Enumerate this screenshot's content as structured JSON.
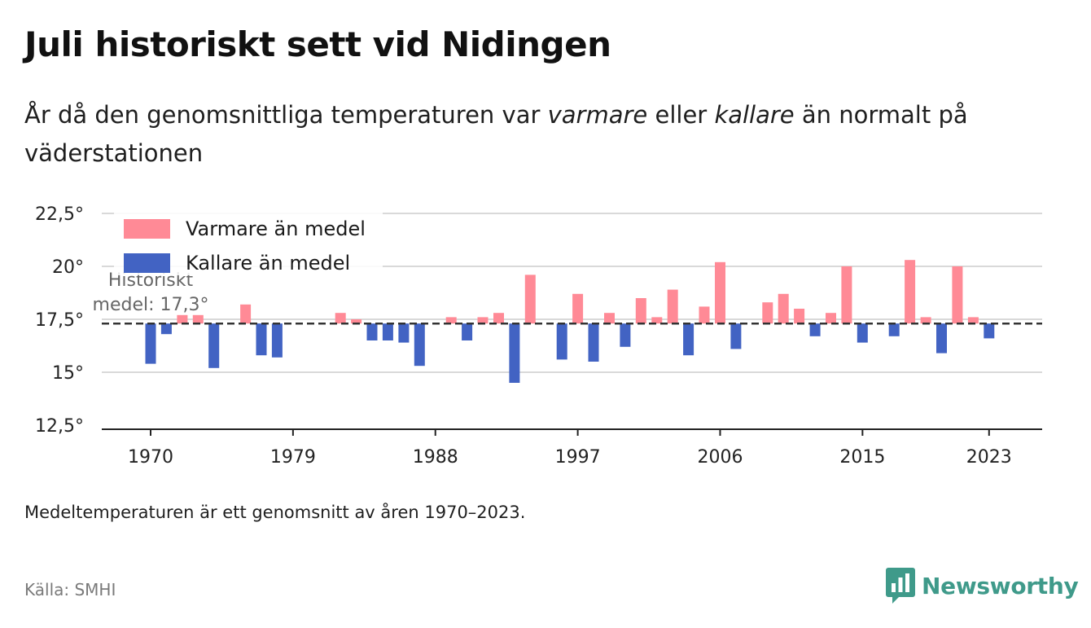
{
  "header": {
    "title": "Juli historiskt sett vid Nidingen",
    "subtitle_part1": "År då den genomsnittliga temperaturen var ",
    "subtitle_emph1": "varmare",
    "subtitle_part2": " eller ",
    "subtitle_emph2": "kallare",
    "subtitle_part3": " än normalt på väderstationen"
  },
  "footer": {
    "note": "Medeltemperaturen är ett genomsnitt av åren 1970–2023.",
    "source": "Källa: SMHI",
    "brand": "Newsworthy",
    "brand_icon": "newsworthy-logo-icon"
  },
  "colors": {
    "warmer": "#ff8a96",
    "colder": "#4263c3",
    "mean_line": "#333333",
    "grid": "#d9d9d9",
    "brand": "#3f9a8a"
  },
  "chart_data": {
    "type": "bar",
    "title": "",
    "xlabel": "",
    "ylabel": "",
    "ylim": [
      12.5,
      22.5
    ],
    "yticks": [
      12.5,
      15,
      17.5,
      20,
      22.5
    ],
    "ytick_labels": [
      "12,5°",
      "15°",
      "17,5°",
      "20°",
      "22,5°"
    ],
    "xticks": [
      1970,
      1979,
      1988,
      1997,
      2006,
      2015,
      2023
    ],
    "xtick_labels": [
      "1970",
      "1979",
      "1988",
      "1997",
      "2006",
      "2015",
      "2023"
    ],
    "grid": true,
    "legend_position": "top-left",
    "baseline": 17.3,
    "baseline_label_line1": "Historiskt",
    "baseline_label_line2": "medel: 17,3°",
    "series": [
      {
        "name": "Varmare än medel",
        "color": "#ff8a96"
      },
      {
        "name": "Kallare än medel",
        "color": "#4263c3"
      }
    ],
    "x": [
      1970,
      1971,
      1972,
      1973,
      1974,
      1975,
      1976,
      1977,
      1978,
      1979,
      1980,
      1981,
      1982,
      1983,
      1984,
      1985,
      1986,
      1987,
      1988,
      1989,
      1990,
      1991,
      1992,
      1993,
      1994,
      1995,
      1996,
      1997,
      1998,
      1999,
      2000,
      2001,
      2002,
      2003,
      2004,
      2005,
      2006,
      2007,
      2008,
      2009,
      2010,
      2011,
      2012,
      2013,
      2014,
      2015,
      2016,
      2017,
      2018,
      2019,
      2020,
      2021,
      2022,
      2023
    ],
    "values": [
      15.4,
      16.8,
      17.7,
      17.7,
      15.2,
      17.3,
      18.2,
      15.8,
      15.7,
      17.3,
      17.3,
      17.3,
      17.8,
      17.5,
      16.5,
      16.5,
      16.4,
      15.3,
      17.3,
      17.6,
      16.5,
      17.6,
      17.8,
      14.5,
      19.6,
      17.3,
      15.6,
      18.7,
      15.5,
      17.8,
      16.2,
      18.5,
      17.6,
      18.9,
      15.8,
      18.1,
      20.2,
      16.1,
      17.3,
      18.3,
      18.7,
      18.0,
      16.7,
      17.8,
      20.0,
      16.4,
      17.3,
      16.7,
      20.3,
      17.6,
      15.9,
      20.0,
      17.6,
      16.6
    ]
  }
}
